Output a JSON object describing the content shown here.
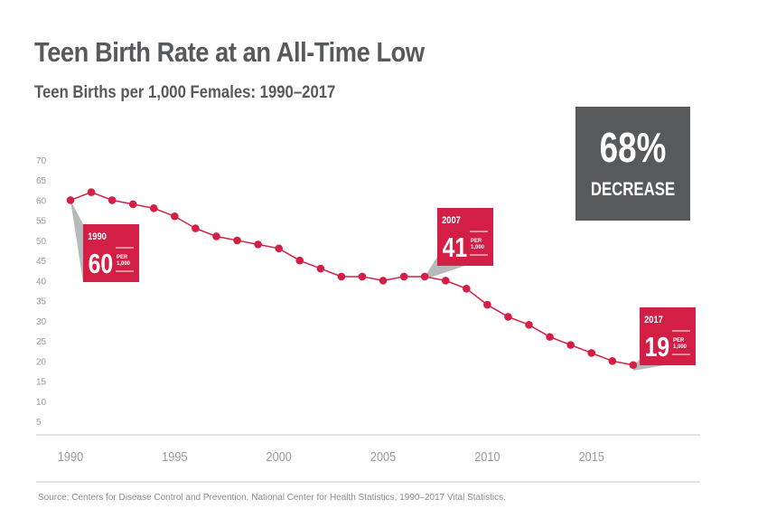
{
  "title": "Teen Birth Rate at an All-Time Low",
  "subtitle": "Teen Births per 1,000 Females: 1990–2017",
  "badge": {
    "value": "68%",
    "label": "DECREASE"
  },
  "source": "Source: Centers for Disease Control and Prevention, National Center for Health Statistics, 1990–2017 Vital Statistics.",
  "colors": {
    "line": "#d31f45",
    "callout": "#d31f45",
    "badge": "#58595b",
    "axis_text": "#9a9a9a"
  },
  "chart_data": {
    "type": "line",
    "title": "Teen Births per 1,000 Females: 1990–2017",
    "x": [
      1990,
      1991,
      1992,
      1993,
      1994,
      1995,
      1996,
      1997,
      1998,
      1999,
      2000,
      2001,
      2002,
      2003,
      2004,
      2005,
      2006,
      2007,
      2008,
      2009,
      2010,
      2011,
      2012,
      2013,
      2014,
      2015,
      2016,
      2017
    ],
    "values": [
      60,
      62,
      60,
      59,
      58,
      56,
      53,
      51,
      50,
      49,
      48,
      45,
      43,
      41,
      41,
      40,
      41,
      41,
      40,
      38,
      34,
      31,
      29,
      26,
      24,
      22,
      20,
      19
    ],
    "ylim": [
      5,
      70
    ],
    "yticks": [
      "5",
      "10",
      "15",
      "20",
      "25",
      "30",
      "35",
      "40",
      "45",
      "50",
      "55",
      "60",
      "65",
      "70"
    ],
    "xticks": [
      "1990",
      "1995",
      "2000",
      "2005",
      "2010",
      "2015"
    ],
    "grid": false,
    "annotations": [
      {
        "year": "1990",
        "value": "60",
        "unit_top": "PER",
        "unit_bottom": "1,000"
      },
      {
        "year": "2007",
        "value": "41",
        "unit_top": "PER",
        "unit_bottom": "1,000"
      },
      {
        "year": "2017",
        "value": "19",
        "unit_top": "PER",
        "unit_bottom": "1,000"
      }
    ]
  }
}
